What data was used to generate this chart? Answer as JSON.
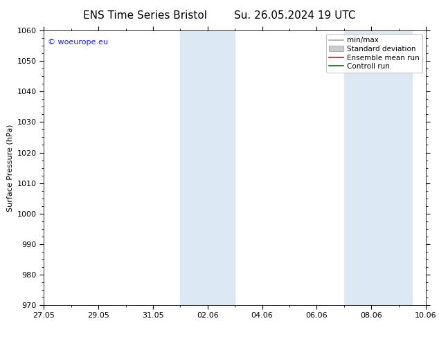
{
  "title_left": "ENS Time Series Bristol",
  "title_right": "Su. 26.05.2024 19 UTC",
  "ylabel": "Surface Pressure (hPa)",
  "ylim": [
    970,
    1060
  ],
  "yticks": [
    970,
    980,
    990,
    1000,
    1010,
    1020,
    1030,
    1040,
    1050,
    1060
  ],
  "xlim": [
    0,
    14
  ],
  "xtick_labels": [
    "27.05",
    "29.05",
    "31.05",
    "02.06",
    "04.06",
    "06.06",
    "08.06",
    "10.06"
  ],
  "xtick_positions": [
    0,
    2,
    4,
    6,
    8,
    10,
    12,
    14
  ],
  "shaded_bands": [
    {
      "x_start": 5.0,
      "x_end": 7.0
    },
    {
      "x_start": 11.0,
      "x_end": 13.5
    }
  ],
  "shaded_color": "#dce9f5",
  "watermark_text": "© woeurope.eu",
  "watermark_color": "#1a1aff",
  "legend_items": [
    {
      "label": "min/max",
      "color": "#aaaaaa",
      "lw": 1.2,
      "style": "solid",
      "type": "line"
    },
    {
      "label": "Standard deviation",
      "color": "#cccccc",
      "lw": 8,
      "style": "solid",
      "type": "patch"
    },
    {
      "label": "Ensemble mean run",
      "color": "#ff0000",
      "lw": 1.2,
      "style": "solid",
      "type": "line"
    },
    {
      "label": "Controll run",
      "color": "#007700",
      "lw": 1.2,
      "style": "solid",
      "type": "line"
    }
  ],
  "bg_color": "#ffffff",
  "tick_fontsize": 8,
  "label_fontsize": 8,
  "title_fontsize": 11,
  "legend_fontsize": 7.5
}
